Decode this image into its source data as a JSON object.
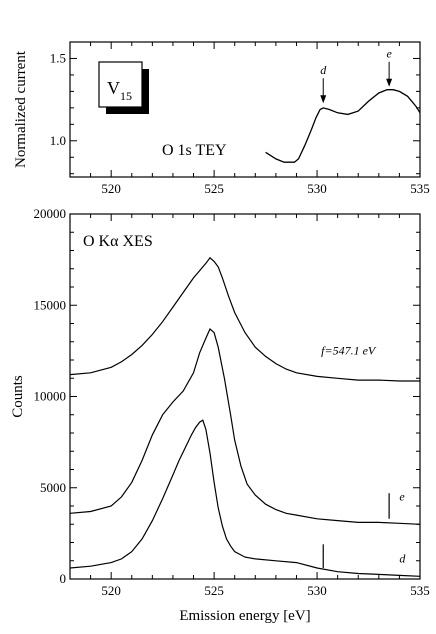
{
  "chart_data": [
    {
      "type": "line",
      "ylabel": "Normalized current",
      "xlim": [
        518,
        535
      ],
      "ylim": [
        0.78,
        1.6
      ],
      "xticks": [
        "520",
        "525",
        "530",
        "535"
      ],
      "yticks": [
        "1.0",
        "1.5"
      ],
      "grid": false,
      "logo": {
        "main": "V",
        "sub": "15"
      },
      "annotation": "O 1s TEY",
      "markers": [
        {
          "label": "d",
          "x": 530.3,
          "y": 1.21
        },
        {
          "label": "e",
          "x": 533.5,
          "y": 1.31
        }
      ],
      "series": [
        {
          "x": [
            527.5,
            528.0,
            528.4,
            528.7,
            528.9,
            529.1,
            529.4,
            529.7,
            529.95,
            530.15,
            530.3,
            530.6,
            531.0,
            531.5,
            532.0,
            532.5,
            533.0,
            533.4,
            533.7,
            534.0,
            534.4,
            534.8,
            535.0
          ],
          "y": [
            0.93,
            0.89,
            0.87,
            0.87,
            0.87,
            0.89,
            0.97,
            1.06,
            1.14,
            1.19,
            1.2,
            1.19,
            1.17,
            1.16,
            1.18,
            1.24,
            1.29,
            1.31,
            1.31,
            1.3,
            1.27,
            1.21,
            1.17
          ]
        }
      ]
    },
    {
      "type": "line",
      "xlabel": "Emission energy [eV]",
      "ylabel": "Counts",
      "xlim": [
        518,
        535
      ],
      "ylim": [
        0,
        20000
      ],
      "xticks": [
        "520",
        "525",
        "530",
        "535"
      ],
      "yticks": [
        "0",
        "5000",
        "10000",
        "15000",
        "20000"
      ],
      "grid": false,
      "annotation": "O Kα XES",
      "series": [
        {
          "name": "f=547.1 eV",
          "x": [
            518.0,
            519.0,
            520.0,
            520.5,
            521.0,
            521.5,
            522.0,
            522.5,
            523.0,
            523.5,
            524.0,
            524.3,
            524.6,
            524.8,
            525.0,
            525.2,
            525.4,
            525.7,
            526.0,
            526.5,
            527.0,
            527.5,
            528.0,
            528.5,
            529.0,
            530.0,
            531.0,
            532.0,
            533.0,
            534.0,
            535.0
          ],
          "y": [
            11200,
            11300,
            11600,
            11900,
            12300,
            12800,
            13400,
            14100,
            14900,
            15700,
            16500,
            16900,
            17300,
            17600,
            17400,
            17100,
            16500,
            15500,
            14600,
            13500,
            12700,
            12200,
            11800,
            11500,
            11300,
            11100,
            11000,
            10900,
            10900,
            10850,
            10850
          ]
        },
        {
          "name": "e",
          "x": [
            518.0,
            519.0,
            520.0,
            520.5,
            521.0,
            521.5,
            522.0,
            522.5,
            523.0,
            523.5,
            524.0,
            524.3,
            524.6,
            524.8,
            525.0,
            525.2,
            525.5,
            525.8,
            526.0,
            526.3,
            526.6,
            527.0,
            527.5,
            528.0,
            528.5,
            529.0,
            530.0,
            531.0,
            532.0,
            533.0,
            534.0,
            535.0
          ],
          "y": [
            3600,
            3700,
            4000,
            4500,
            5300,
            6500,
            7900,
            9000,
            9700,
            10300,
            11300,
            12400,
            13200,
            13700,
            13500,
            12700,
            11000,
            9000,
            7600,
            6200,
            5200,
            4600,
            4100,
            3800,
            3600,
            3500,
            3300,
            3200,
            3100,
            3100,
            3050,
            3000
          ]
        },
        {
          "name": "d",
          "x": [
            518.0,
            519.0,
            520.0,
            520.5,
            521.0,
            521.5,
            522.0,
            522.5,
            523.0,
            523.3,
            523.6,
            523.9,
            524.1,
            524.3,
            524.45,
            524.6,
            524.8,
            525.0,
            525.2,
            525.4,
            525.6,
            525.8,
            526.0,
            526.5,
            527.0,
            528.0,
            529.0,
            530.0,
            531.0,
            532.0,
            533.0,
            534.0,
            535.0
          ],
          "y": [
            600,
            700,
            900,
            1100,
            1500,
            2200,
            3200,
            4400,
            5700,
            6500,
            7200,
            7900,
            8300,
            8600,
            8700,
            8200,
            6900,
            5300,
            3900,
            2900,
            2200,
            1800,
            1500,
            1200,
            1100,
            1000,
            900,
            600,
            400,
            300,
            250,
            200,
            150
          ]
        }
      ],
      "labels": [
        {
          "text": "f=547.1 eV",
          "x": 530.2,
          "y": 12300
        },
        {
          "text": "e",
          "x": 534.0,
          "y": 4300
        },
        {
          "text": "d",
          "x": 534.0,
          "y": 900
        }
      ],
      "markers": [
        {
          "x": 533.5,
          "y0": 3300,
          "y1": 4700
        },
        {
          "x": 530.3,
          "y0": 600,
          "y1": 1900
        }
      ]
    }
  ]
}
